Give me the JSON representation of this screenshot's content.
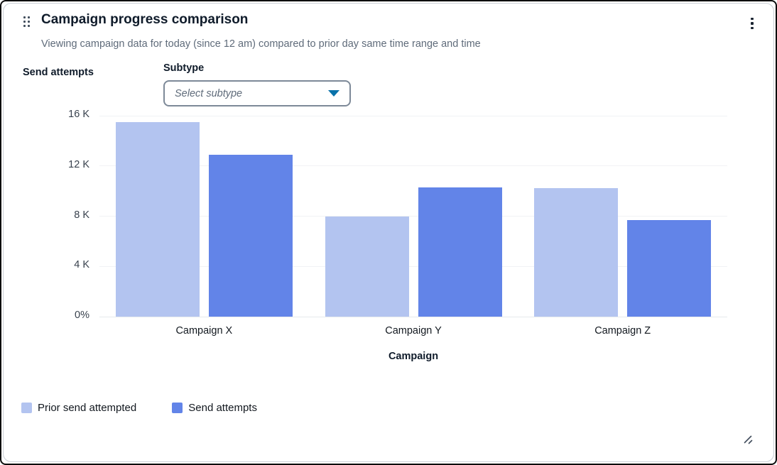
{
  "card": {
    "title": "Campaign progress comparison",
    "subtitle": "Viewing campaign data for today (since 12 am) compared to prior day same time range and time"
  },
  "controls": {
    "y_axis_title": "Send attempts",
    "subtype_label": "Subtype",
    "subtype_placeholder": "Select subtype",
    "caret_color": "#0972aa"
  },
  "chart_data": {
    "type": "bar",
    "title": "Campaign progress comparison",
    "categories": [
      "Campaign X",
      "Campaign Y",
      "Campaign Z"
    ],
    "series": [
      {
        "name": "Prior send attempted",
        "color": "#b3c4f0",
        "values": [
          15500,
          8000,
          10250
        ]
      },
      {
        "name": "Send attempts",
        "color": "#6284e8",
        "values": [
          12900,
          10300,
          7700
        ]
      }
    ],
    "xlabel": "Campaign",
    "ylabel": "Send attempts",
    "ylim": [
      0,
      16000
    ],
    "yticks": [
      "16 K",
      "12 K",
      "8 K",
      "4 K",
      "0%"
    ],
    "grid": true,
    "legend_position": "bottom-left"
  }
}
